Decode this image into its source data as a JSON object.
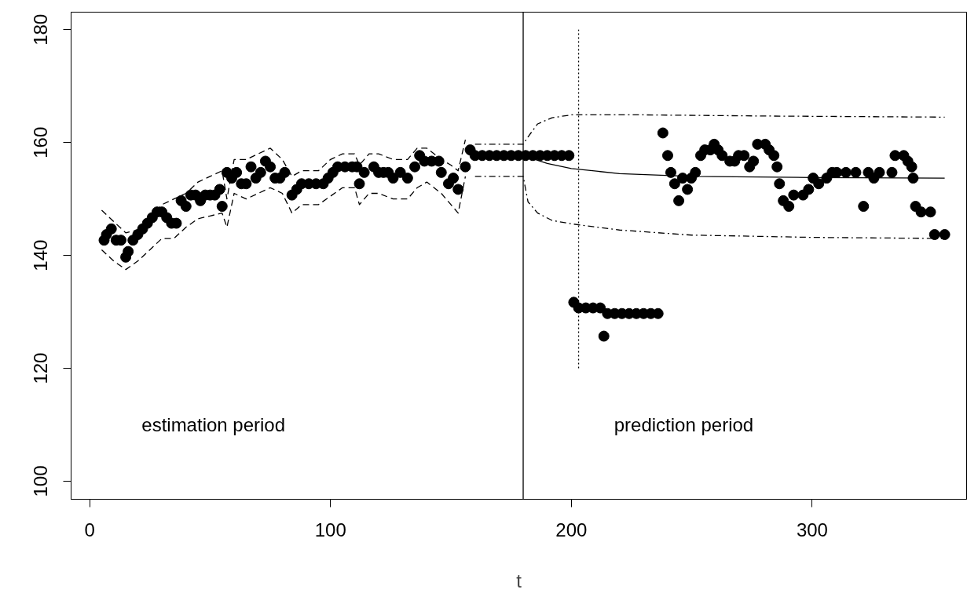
{
  "chart_data": {
    "type": "scatter",
    "xlabel": "t",
    "xlim": [
      -7.7,
      364.1
    ],
    "ylim": [
      96.8,
      183.1
    ],
    "xticks": [
      0,
      100,
      200,
      300
    ],
    "yticks": [
      100,
      120,
      140,
      160,
      180
    ],
    "grid": false,
    "annotations": [
      "estimation period",
      "prediction period"
    ],
    "ref_lines": [
      {
        "axis": "x",
        "value": 180,
        "color": "#000000",
        "line_style": "solid"
      }
    ],
    "series": [
      {
        "marker": "circle",
        "color": "#000000",
        "x": [
          6,
          7,
          9,
          11,
          13,
          15,
          16,
          18,
          20,
          22,
          24,
          26,
          28,
          30,
          32,
          34,
          36,
          38,
          40,
          42,
          44,
          46,
          48,
          50,
          52,
          54,
          55,
          57,
          59,
          61,
          63,
          65,
          67,
          69,
          71,
          73,
          75,
          77,
          79,
          81,
          84,
          86,
          88,
          91,
          94,
          97,
          99,
          101,
          103,
          106,
          109,
          111,
          112,
          114,
          118,
          120,
          122,
          124,
          126,
          129,
          132,
          135,
          137,
          139,
          142,
          145,
          146,
          149,
          151,
          153,
          156,
          158,
          160,
          163,
          166,
          169,
          172,
          175,
          178,
          181,
          184,
          187,
          190,
          193,
          196,
          199,
          201,
          203,
          206,
          209,
          212,
          213.5,
          215,
          218,
          221,
          224,
          227,
          230,
          233,
          236,
          238,
          240,
          241.3,
          242.9,
          244.6,
          246.2,
          248.2,
          249.8,
          251.5,
          253.7,
          255.4,
          257.7,
          259.3,
          260.9,
          262.6,
          265.8,
          267.8,
          269.4,
          271.7,
          274,
          275.6,
          277.3,
          280.5,
          282.1,
          284.1,
          285.4,
          286.4,
          288,
          290.3,
          292.3,
          296.2,
          298.5,
          300.4,
          302.7,
          306,
          308.3,
          310.2,
          314,
          318.1,
          321.3,
          323.3,
          325.6,
          327.9,
          333.1,
          334.4,
          338,
          339.7,
          341.3,
          341.9,
          342.9,
          345.2,
          349.1,
          350.8,
          355
        ],
        "values": [
          142.7,
          143.7,
          144.7,
          142.7,
          142.7,
          139.7,
          140.7,
          142.7,
          143.7,
          144.7,
          145.7,
          146.7,
          147.7,
          147.7,
          146.7,
          145.7,
          145.7,
          149.7,
          148.7,
          150.7,
          150.7,
          149.7,
          150.7,
          150.7,
          150.7,
          151.7,
          148.7,
          154.7,
          153.7,
          154.7,
          152.7,
          152.7,
          155.7,
          153.7,
          154.7,
          156.7,
          155.7,
          153.7,
          153.7,
          154.7,
          150.7,
          151.7,
          152.7,
          152.7,
          152.7,
          152.7,
          153.7,
          154.7,
          155.7,
          155.7,
          155.7,
          155.7,
          152.7,
          154.7,
          155.7,
          154.7,
          154.7,
          154.7,
          153.7,
          154.7,
          153.7,
          155.7,
          157.7,
          156.7,
          156.7,
          156.7,
          154.7,
          152.7,
          153.7,
          151.7,
          155.7,
          158.7,
          157.7,
          157.7,
          157.7,
          157.7,
          157.7,
          157.7,
          157.7,
          157.7,
          157.7,
          157.7,
          157.7,
          157.7,
          157.7,
          157.7,
          131.7,
          130.7,
          130.7,
          130.7,
          130.7,
          125.7,
          129.7,
          129.7,
          129.7,
          129.7,
          129.7,
          129.7,
          129.7,
          129.7,
          161.7,
          157.7,
          154.7,
          152.7,
          149.7,
          153.7,
          151.7,
          153.7,
          154.7,
          157.7,
          158.7,
          158.7,
          159.7,
          158.7,
          157.7,
          156.7,
          156.7,
          157.7,
          157.7,
          155.7,
          156.7,
          159.7,
          159.7,
          158.7,
          157.7,
          155.7,
          152.7,
          149.7,
          148.7,
          150.7,
          150.7,
          151.7,
          153.7,
          152.7,
          153.7,
          154.7,
          154.7,
          154.7,
          154.7,
          148.7,
          154.7,
          153.7,
          154.7,
          154.7,
          157.7,
          157.7,
          156.7,
          155.7,
          153.7,
          148.7,
          147.7,
          147.7,
          143.7,
          143.7
        ]
      },
      {
        "type": "line",
        "color": "#000000",
        "line_style": "dashed",
        "x": [
          5,
          10,
          15,
          20,
          25,
          30,
          35,
          40,
          45,
          50,
          55,
          57,
          60,
          65,
          70,
          75,
          80,
          84,
          88,
          95,
          100,
          105,
          110,
          112,
          116,
          120,
          126,
          132,
          136,
          140,
          146,
          150,
          153,
          156
        ],
        "values": [
          148,
          146,
          144,
          144.5,
          146.5,
          149,
          150,
          151,
          153,
          154,
          155,
          150,
          157,
          157,
          158,
          159,
          157,
          154,
          155,
          155,
          157,
          158,
          158,
          156,
          158,
          158,
          157,
          157,
          159,
          159,
          157,
          156,
          155,
          160.5
        ]
      },
      {
        "type": "line",
        "color": "#000000",
        "line_style": "dashed",
        "x": [
          5,
          10,
          15,
          20,
          25,
          30,
          35,
          40,
          45,
          50,
          55,
          57,
          60,
          65,
          70,
          75,
          80,
          84,
          88,
          95,
          100,
          105,
          110,
          112,
          116,
          120,
          126,
          132,
          136,
          140,
          146,
          150,
          153,
          156
        ],
        "values": [
          141,
          139,
          137.5,
          139,
          141,
          143,
          143,
          145,
          146.5,
          147,
          147.5,
          145,
          151,
          150,
          151,
          152,
          151,
          147.5,
          149,
          149,
          150.5,
          152,
          152,
          149,
          151,
          151,
          150,
          150,
          152,
          153,
          151,
          149,
          147.5,
          154
        ]
      },
      {
        "type": "line",
        "color": "#000000",
        "line_style": "dashdot",
        "x": [
          160,
          180,
          182,
          186,
          192,
          200,
          230,
          280,
          355
        ],
        "values": [
          159.7,
          159.7,
          161,
          163.3,
          164.4,
          164.9,
          164.9,
          164.7,
          164.5
        ]
      },
      {
        "type": "line",
        "color": "#000000",
        "line_style": "dashdot",
        "x": [
          160,
          180,
          182,
          186,
          192,
          200,
          220,
          250,
          300,
          355
        ],
        "values": [
          154,
          154,
          149.5,
          147.5,
          146.2,
          145.6,
          144.5,
          143.6,
          143.2,
          143
        ]
      },
      {
        "type": "line",
        "color": "#000000",
        "line_style": "solid",
        "x": [
          180,
          190,
          200,
          220,
          250,
          300,
          355
        ],
        "values": [
          157.7,
          156.3,
          155.4,
          154.5,
          154,
          153.8,
          153.7
        ]
      },
      {
        "type": "line",
        "color": "#000000",
        "line_style": "dotted",
        "x": [
          203,
          203
        ],
        "values": [
          120,
          180
        ]
      }
    ]
  }
}
